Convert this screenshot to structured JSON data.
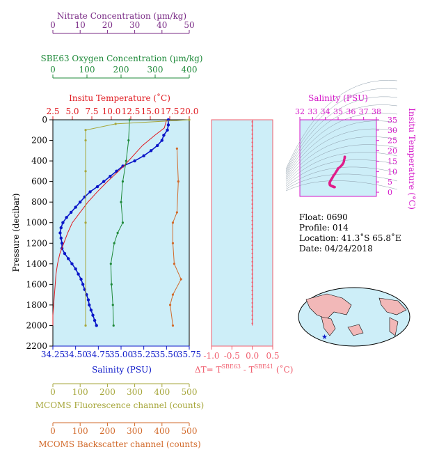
{
  "colors": {
    "nitrate": "#7a2b86",
    "oxygen": "#1f8a3a",
    "temperature": "#e0191f",
    "salinity": "#0a16c8",
    "fluorescence": "#a6a63a",
    "backscatter": "#d26a2b",
    "panel_bg": "#cdeef8",
    "delta": "#f05d6d",
    "ts_axis": "#d414c8",
    "ts_points": "#e01d8a"
  },
  "top_axes": [
    {
      "key": "nitrate",
      "title": "Nitrate Concentration (µm/kg)",
      "ticks": [
        "0",
        "10",
        "20",
        "30",
        "40",
        "50"
      ],
      "range": [
        0,
        50
      ]
    },
    {
      "key": "oxygen",
      "title": "SBE63 Oxygen Concentration (µm/kg)",
      "ticks": [
        "0",
        "100",
        "200",
        "300",
        "400"
      ],
      "range": [
        0,
        400
      ]
    },
    {
      "key": "temperature",
      "title": "Insitu Temperature (˚C)",
      "ticks": [
        "2.5",
        "5.0",
        "7.5",
        "10.0",
        "12.5",
        "15.0",
        "17.5",
        "20.0"
      ],
      "range": [
        2.5,
        20.0
      ]
    }
  ],
  "bottom_axes": [
    {
      "key": "salinity",
      "title": "Salinity (PSU)",
      "ticks": [
        "34.25",
        "34.50",
        "34.75",
        "35.00",
        "35.25",
        "35.50",
        "35.75"
      ],
      "range": [
        34.25,
        35.75
      ]
    },
    {
      "key": "fluorescence",
      "title": "MCOMS Fluorescence channel (counts)",
      "ticks": [
        "0",
        "100",
        "200",
        "300",
        "400",
        "500"
      ],
      "range": [
        0,
        500
      ]
    },
    {
      "key": "backscatter",
      "title": "MCOMS Backscatter channel (counts)",
      "ticks": [
        "0",
        "100",
        "200",
        "300",
        "400",
        "500"
      ],
      "range": [
        0,
        500
      ]
    }
  ],
  "pressure_axis": {
    "label": "Pressure (decibar)",
    "ticks": [
      "0",
      "200",
      "400",
      "600",
      "800",
      "1000",
      "1200",
      "1400",
      "1600",
      "1800",
      "2000",
      "2200"
    ],
    "range": [
      0,
      2200
    ]
  },
  "delta_axis": {
    "ticks": [
      "-1.0",
      "-0.5",
      "0.0",
      "0.5"
    ],
    "range": [
      -1.0,
      0.5
    ],
    "label_prefix": "ΔT= T",
    "sup1": "SBE63",
    "mid": " - T",
    "sup2": "SBE41",
    "unit": " (˚C)"
  },
  "ts_diagram": {
    "title": "Salinity (PSU)",
    "x_ticks": [
      "32",
      "33",
      "34",
      "35",
      "36",
      "37",
      "38"
    ],
    "x_range": [
      32,
      38
    ],
    "y_ticks": [
      "0",
      "5",
      "10",
      "15",
      "20",
      "25",
      "30",
      "35"
    ],
    "y_range": [
      -2,
      35
    ],
    "ylabel": "Insitu Temperature (°C)"
  },
  "info": {
    "float": "Float:  0690",
    "profile": "Profile:  014",
    "location": "Location:  41.3˚S  65.8˚E",
    "date": "Date:  04/24/2018"
  },
  "chart_data": {
    "type": "line",
    "y_quantity": "pressure",
    "series": [
      {
        "name": "Salinity",
        "units": "PSU",
        "values": [
          [
            35.52,
            0
          ],
          [
            35.52,
            50
          ],
          [
            35.51,
            100
          ],
          [
            35.47,
            150
          ],
          [
            35.45,
            200
          ],
          [
            35.4,
            250
          ],
          [
            35.33,
            300
          ],
          [
            35.25,
            350
          ],
          [
            35.15,
            400
          ],
          [
            35.02,
            450
          ],
          [
            34.95,
            500
          ],
          [
            34.88,
            550
          ],
          [
            34.81,
            600
          ],
          [
            34.74,
            650
          ],
          [
            34.66,
            700
          ],
          [
            34.6,
            750
          ],
          [
            34.55,
            800
          ],
          [
            34.5,
            850
          ],
          [
            34.45,
            900
          ],
          [
            34.4,
            950
          ],
          [
            34.36,
            1000
          ],
          [
            34.34,
            1050
          ],
          [
            34.33,
            1100
          ],
          [
            34.34,
            1150
          ],
          [
            34.35,
            1200
          ],
          [
            34.35,
            1250
          ],
          [
            34.38,
            1300
          ],
          [
            34.42,
            1350
          ],
          [
            34.46,
            1400
          ],
          [
            34.5,
            1450
          ],
          [
            34.53,
            1500
          ],
          [
            34.56,
            1550
          ],
          [
            34.58,
            1600
          ],
          [
            34.6,
            1650
          ],
          [
            34.62,
            1700
          ],
          [
            34.64,
            1750
          ],
          [
            34.65,
            1800
          ],
          [
            34.67,
            1850
          ],
          [
            34.69,
            1900
          ],
          [
            34.71,
            1950
          ],
          [
            34.73,
            2000
          ]
        ]
      },
      {
        "name": "Insitu Temperature",
        "units": "°C",
        "values": [
          [
            17.1,
            0
          ],
          [
            16.8,
            80
          ],
          [
            15.6,
            150
          ],
          [
            14.0,
            250
          ],
          [
            12.8,
            350
          ],
          [
            11.6,
            450
          ],
          [
            10.5,
            530
          ],
          [
            9.5,
            600
          ],
          [
            8.2,
            700
          ],
          [
            7.0,
            800
          ],
          [
            6.0,
            900
          ],
          [
            5.0,
            1000
          ],
          [
            4.4,
            1100
          ],
          [
            3.9,
            1200
          ],
          [
            3.4,
            1300
          ],
          [
            3.1,
            1400
          ],
          [
            2.9,
            1500
          ],
          [
            2.8,
            1600
          ],
          [
            2.7,
            1700
          ],
          [
            2.6,
            1800
          ],
          [
            2.5,
            1900
          ],
          [
            2.5,
            2000
          ]
        ]
      },
      {
        "name": "SBE63 Oxygen",
        "units": "µm/kg",
        "values": [
          [
            225,
            0
          ],
          [
            222,
            200
          ],
          [
            215,
            400
          ],
          [
            205,
            600
          ],
          [
            200,
            800
          ],
          [
            205,
            1000
          ],
          [
            190,
            1100
          ],
          [
            180,
            1200
          ],
          [
            170,
            1400
          ],
          [
            172,
            1600
          ],
          [
            176,
            1800
          ],
          [
            178,
            2000
          ]
        ]
      },
      {
        "name": "MCOMS Fluorescence",
        "units": "counts",
        "values": [
          [
            500,
            0
          ],
          [
            230,
            40
          ],
          [
            120,
            100
          ],
          [
            120,
            200
          ],
          [
            120,
            500
          ],
          [
            120,
            1000
          ],
          [
            120,
            2000
          ]
        ]
      },
      {
        "name": "MCOMS Backscatter",
        "units": "counts",
        "values": [
          [
            455,
            280
          ],
          [
            460,
            600
          ],
          [
            455,
            900
          ],
          [
            440,
            1000
          ],
          [
            440,
            1200
          ],
          [
            445,
            1400
          ],
          [
            470,
            1550
          ],
          [
            440,
            1700
          ],
          [
            430,
            1800
          ],
          [
            440,
            2000
          ]
        ]
      },
      {
        "name": "ΔT",
        "units": "°C",
        "values": [
          [
            0.0,
            0
          ],
          [
            0.0,
            500
          ],
          [
            0.0,
            1000
          ],
          [
            0.0,
            1500
          ],
          [
            0.0,
            2000
          ]
        ]
      }
    ]
  }
}
